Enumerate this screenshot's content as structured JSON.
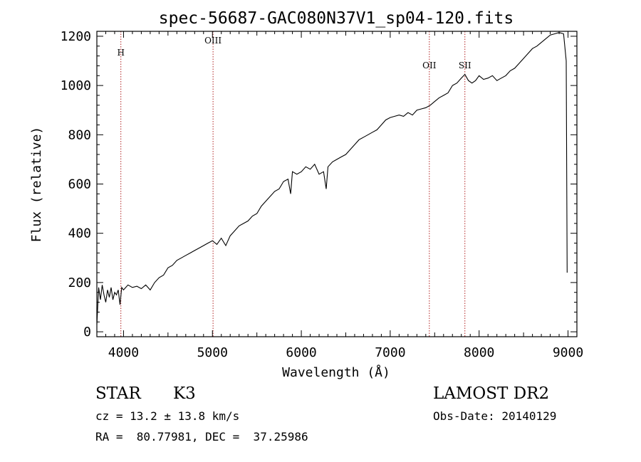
{
  "chart_data": {
    "type": "line",
    "title": "spec-56687-GAC080N37V1_sp04-120.fits",
    "xlabel": "Wavelength (Å)",
    "ylabel": "Flux (relative)",
    "xlim": [
      3700,
      9100
    ],
    "ylim": [
      -20,
      1220
    ],
    "xticks": [
      4000,
      5000,
      6000,
      7000,
      8000,
      9000
    ],
    "yticks": [
      0,
      200,
      400,
      600,
      800,
      1000,
      1200
    ],
    "grid": false,
    "lines": [
      {
        "label": "H",
        "x": 3970
      },
      {
        "label": "OIII",
        "x": 5007
      },
      {
        "label": "OII",
        "x": 7440
      },
      {
        "label": "SII",
        "x": 7840
      }
    ],
    "series": [
      {
        "x": [
          3700,
          3720,
          3740,
          3760,
          3780,
          3800,
          3820,
          3840,
          3860,
          3880,
          3900,
          3920,
          3940,
          3960,
          3980,
          4000,
          4050,
          4100,
          4150,
          4200,
          4250,
          4300,
          4350,
          4400,
          4450,
          4500,
          4550,
          4600,
          4650,
          4700,
          4750,
          4800,
          4850,
          4900,
          4950,
          5000,
          5050,
          5100,
          5150,
          5200,
          5250,
          5300,
          5350,
          5400,
          5450,
          5500,
          5550,
          5600,
          5650,
          5700,
          5750,
          5800,
          5850,
          5880,
          5900,
          5950,
          6000,
          6050,
          6100,
          6150,
          6200,
          6250,
          6280,
          6300,
          6350,
          6400,
          6450,
          6500,
          6550,
          6600,
          6650,
          6700,
          6750,
          6800,
          6850,
          6900,
          6950,
          7000,
          7050,
          7100,
          7150,
          7200,
          7250,
          7300,
          7350,
          7400,
          7450,
          7500,
          7550,
          7600,
          7650,
          7700,
          7750,
          7800,
          7840,
          7880,
          7920,
          7960,
          8000,
          8050,
          8100,
          8150,
          8200,
          8250,
          8300,
          8350,
          8400,
          8450,
          8500,
          8550,
          8600,
          8650,
          8700,
          8750,
          8800,
          8850,
          8900,
          8950,
          8980,
          8990
        ],
        "y": [
          30,
          180,
          130,
          190,
          150,
          120,
          170,
          140,
          180,
          130,
          160,
          150,
          170,
          110,
          180,
          170,
          190,
          180,
          185,
          175,
          190,
          170,
          200,
          220,
          230,
          260,
          270,
          290,
          300,
          310,
          320,
          330,
          340,
          350,
          360,
          370,
          355,
          380,
          350,
          390,
          410,
          430,
          440,
          450,
          470,
          480,
          510,
          530,
          550,
          570,
          580,
          610,
          620,
          560,
          650,
          640,
          650,
          670,
          660,
          680,
          640,
          650,
          580,
          670,
          690,
          700,
          710,
          720,
          740,
          760,
          780,
          790,
          800,
          810,
          820,
          840,
          860,
          870,
          875,
          880,
          875,
          890,
          880,
          900,
          905,
          910,
          920,
          935,
          950,
          960,
          970,
          1000,
          1010,
          1030,
          1045,
          1020,
          1010,
          1020,
          1040,
          1025,
          1030,
          1040,
          1020,
          1030,
          1040,
          1060,
          1070,
          1090,
          1110,
          1130,
          1150,
          1160,
          1175,
          1190,
          1205,
          1210,
          1215,
          1210,
          1100,
          240
        ]
      }
    ]
  },
  "info": {
    "object_class": "STAR",
    "subclass": "K3",
    "survey": "LAMOST DR2",
    "redshift_line": "cz = 13.2 ± 13.8 km/s",
    "obs_date_line": "Obs-Date: 20140129",
    "coords_line": "RA =  80.77981, DEC =  37.25986"
  }
}
